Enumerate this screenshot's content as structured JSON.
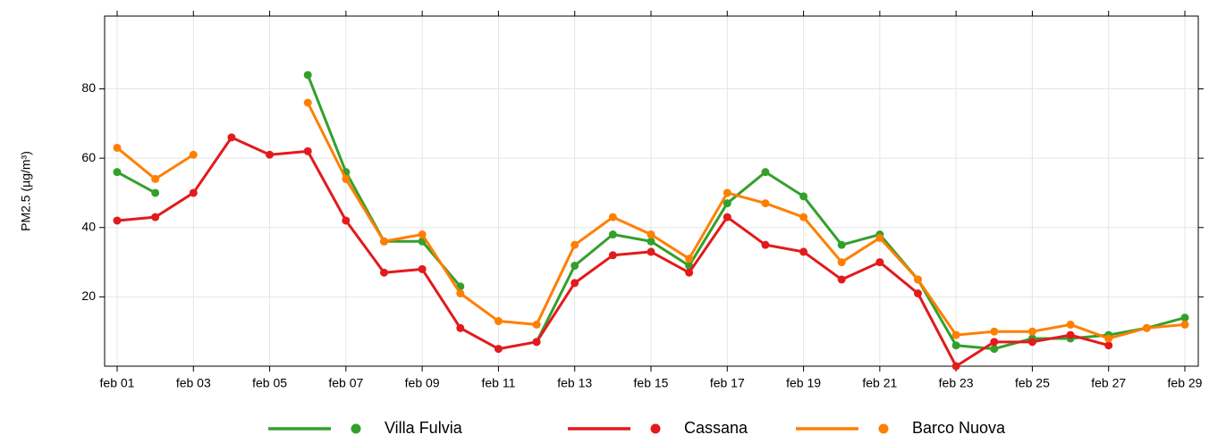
{
  "chart_data": {
    "type": "line",
    "y_label": "PM2.5 (µg/m³)",
    "categories": [
      "feb 01",
      null,
      "feb 03",
      null,
      "feb 05",
      null,
      "feb 07",
      null,
      "feb 09",
      null,
      "feb 11",
      null,
      "feb 13",
      null,
      "feb 15",
      null,
      "feb 17",
      null,
      "feb 19",
      null,
      "feb 21",
      null,
      "feb 23",
      null,
      "feb 25",
      null,
      "feb 27",
      null,
      "feb 29"
    ],
    "series": [
      {
        "name": "Villa Fulvia",
        "color": "#33a02c",
        "values": [
          56,
          50,
          null,
          null,
          null,
          84,
          56,
          36,
          36,
          23,
          null,
          7,
          29,
          38,
          36,
          29,
          47,
          56,
          49,
          35,
          38,
          25,
          6,
          5,
          8,
          8,
          9,
          11,
          14
        ]
      },
      {
        "name": "Cassana",
        "color": "#e31a1c",
        "values": [
          42,
          43,
          50,
          66,
          61,
          62,
          42,
          27,
          28,
          11,
          5,
          7,
          24,
          32,
          33,
          27,
          43,
          35,
          33,
          25,
          30,
          21,
          0,
          7,
          7,
          9,
          6,
          null,
          null
        ]
      },
      {
        "name": "Barco Nuova",
        "color": "#ff7f00",
        "values": [
          63,
          54,
          61,
          null,
          null,
          76,
          54,
          36,
          38,
          21,
          13,
          12,
          35,
          43,
          38,
          31,
          50,
          47,
          43,
          30,
          37,
          25,
          9,
          10,
          10,
          12,
          8,
          11,
          12
        ]
      }
    ],
    "ylim": [
      0,
      101
    ],
    "yticks": [
      20,
      40,
      60,
      80
    ],
    "grid": true,
    "legend": "bottom"
  }
}
